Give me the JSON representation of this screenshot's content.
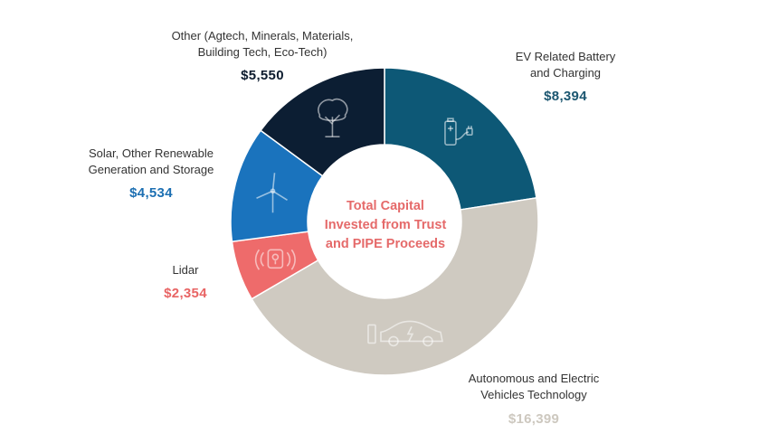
{
  "chart_data": {
    "type": "pie",
    "title_lines": [
      "Total Capital",
      "Invested from Trust",
      "and PIPE Proceeds"
    ],
    "slices": [
      {
        "label_lines": [
          "EV Related Battery",
          "and Charging"
        ],
        "value": 8394,
        "value_label": "$8,394",
        "color": "#0d5876",
        "value_color": "#1b5670",
        "icon": "battery-charging-icon"
      },
      {
        "label_lines": [
          "Autonomous and Electric",
          "Vehicles Technology"
        ],
        "value": 16399,
        "value_label": "$16,399",
        "color": "#cfcac1",
        "value_color": "#cdc8bf",
        "icon": "electric-car-icon"
      },
      {
        "label_lines": [
          "Lidar"
        ],
        "value": 2354,
        "value_label": "$2,354",
        "color": "#ee6b6b",
        "value_color": "#e86464",
        "icon": "lidar-sensor-icon"
      },
      {
        "label_lines": [
          "Solar, Other Renewable",
          "Generation and Storage"
        ],
        "value": 4534,
        "value_label": "$4,534",
        "color": "#1a73bd",
        "value_color": "#1c6fb2",
        "icon": "wind-turbine-icon"
      },
      {
        "label_lines": [
          "Other (Agtech, Minerals, Materials,",
          "Building Tech, Eco-Tech)"
        ],
        "value": 5550,
        "value_label": "$5,550",
        "color": "#0c1e33",
        "value_color": "#0c1b2e",
        "icon": "tree-icon"
      }
    ],
    "center_title_color": "#e56a6a"
  }
}
